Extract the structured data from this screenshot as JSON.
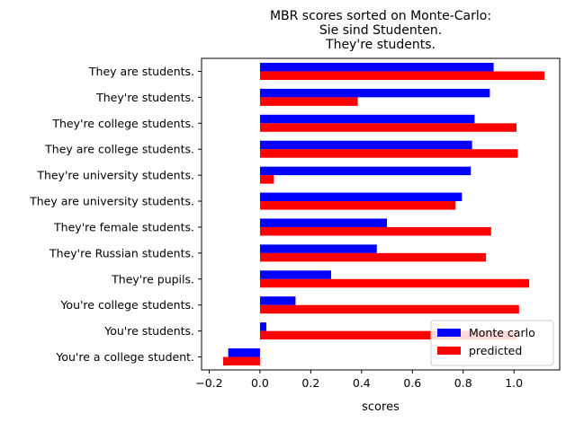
{
  "chart_data": {
    "type": "bar",
    "orientation": "horizontal",
    "title_lines": [
      "MBR scores sorted on Monte-Carlo:",
      "Sie sind Studenten.",
      "They're students."
    ],
    "xlabel": "scores",
    "ylabel": "",
    "xlim": [
      -0.23,
      1.18
    ],
    "xticks": [
      -0.2,
      0.0,
      0.2,
      0.4,
      0.6,
      0.8,
      1.0
    ],
    "xtick_labels": [
      "−0.2",
      "0.0",
      "0.2",
      "0.4",
      "0.6",
      "0.8",
      "1.0"
    ],
    "grid": false,
    "legend_position": "lower-right",
    "categories": [
      "They are students.",
      "They're students.",
      "They're college students.",
      "They are college students.",
      "They're university students.",
      "They are university students.",
      "They're female students.",
      "They're Russian students.",
      "They're pupils.",
      "You're college students.",
      "You're students.",
      "You're a college student."
    ],
    "series": [
      {
        "name": "Monte carlo",
        "color": "#0000ff",
        "values": [
          0.92,
          0.905,
          0.845,
          0.835,
          0.83,
          0.795,
          0.5,
          0.46,
          0.28,
          0.14,
          0.025,
          -0.125
        ]
      },
      {
        "name": "predicted",
        "color": "#ff0000",
        "values": [
          1.12,
          0.385,
          1.01,
          1.015,
          0.055,
          0.77,
          0.91,
          0.89,
          1.06,
          1.02,
          1.01,
          -0.145
        ]
      }
    ]
  }
}
